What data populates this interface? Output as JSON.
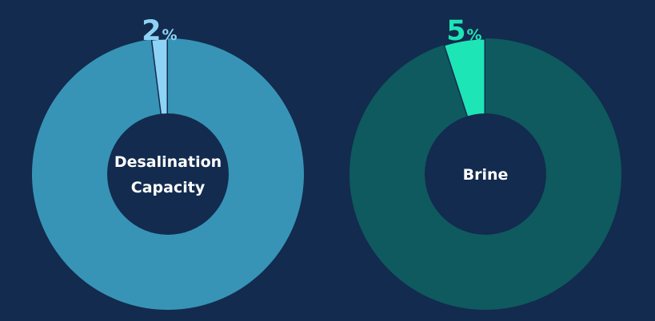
{
  "colors": {
    "background": "#132b4e",
    "hole": "#132b4e"
  },
  "chart_data": [
    {
      "type": "pie",
      "subtype": "donut",
      "center_label": [
        "Desalination",
        "Capacity"
      ],
      "slices": [
        {
          "value": 2,
          "label": "2",
          "unit": "%",
          "highlighted": true,
          "color": "#8ed3f5"
        },
        {
          "value": 98,
          "label": "",
          "unit": "",
          "highlighted": false,
          "color": "#3794b6"
        }
      ],
      "label_color": "#8ed3f5"
    },
    {
      "type": "pie",
      "subtype": "donut",
      "center_label": [
        "Brine"
      ],
      "slices": [
        {
          "value": 5,
          "label": "5",
          "unit": "%",
          "highlighted": true,
          "color": "#1ee5b5"
        },
        {
          "value": 95,
          "label": "",
          "unit": "",
          "highlighted": false,
          "color": "#0e5a5f"
        }
      ],
      "label_color": "#1ee5b5"
    }
  ]
}
